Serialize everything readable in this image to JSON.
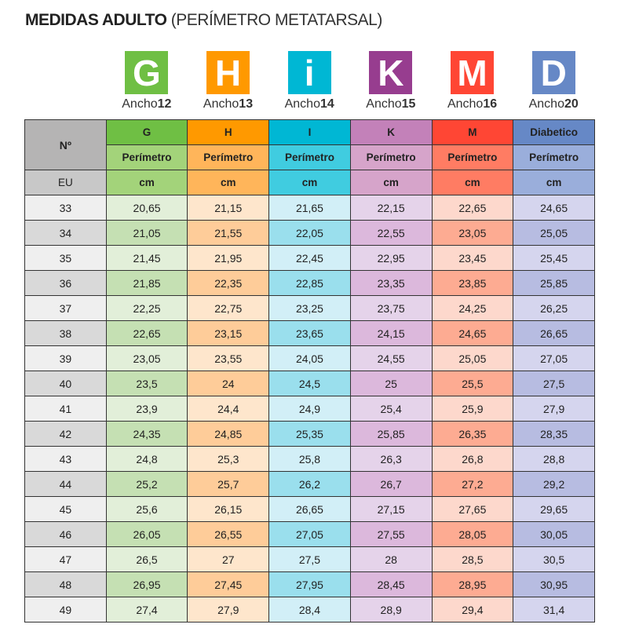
{
  "title": {
    "bold": "MEDIDAS ADULTO",
    "rest": "(PERÍMETRO METATARSAL)"
  },
  "badges": [
    {
      "letter": "G",
      "label": "Ancho",
      "num": "12",
      "color": "#6fbf44"
    },
    {
      "letter": "H",
      "label": "Ancho",
      "num": "13",
      "color": "#ff9900"
    },
    {
      "letter": "i",
      "label": "Ancho",
      "num": "14",
      "color": "#00b7d4"
    },
    {
      "letter": "K",
      "label": "Ancho",
      "num": "15",
      "color": "#973d8f"
    },
    {
      "letter": "M",
      "label": "Ancho",
      "num": "16",
      "color": "#ff4634"
    },
    {
      "letter": "D",
      "label": "Ancho",
      "num": "20",
      "color": "#6688c6"
    }
  ],
  "table": {
    "no_header": "Nº",
    "eu_header": "EU",
    "columns": [
      {
        "name": "G",
        "sub": "Perímetro",
        "unit": "cm",
        "c1": "#6fbf44",
        "c2": "#a3d37a",
        "light": "#e2efd9",
        "dark": "#c5e0b3"
      },
      {
        "name": "H",
        "sub": "Perímetro",
        "unit": "cm",
        "c1": "#ff9900",
        "c2": "#ffb55a",
        "light": "#fee6cc",
        "dark": "#fecc99"
      },
      {
        "name": "I",
        "sub": "Perímetro",
        "unit": "cm",
        "c1": "#00b7d4",
        "c2": "#40cce0",
        "light": "#d2eff7",
        "dark": "#9adfed"
      },
      {
        "name": "K",
        "sub": "Perímetro",
        "unit": "cm",
        "c1": "#c381b9",
        "c2": "#d6a4ca",
        "light": "#e5d3ea",
        "dark": "#dcb8dc"
      },
      {
        "name": "M",
        "sub": "Perímetro",
        "unit": "cm",
        "c1": "#ff4634",
        "c2": "#ff7c63",
        "light": "#fdd8cc",
        "dark": "#fdab92"
      },
      {
        "name": "Diabetico",
        "sub": "Perímetro",
        "unit": "cm",
        "c1": "#6688c6",
        "c2": "#9aaedb",
        "light": "#d5d5ee",
        "dark": "#b7bce1"
      }
    ],
    "rows": [
      [
        "33",
        "20,65",
        "21,15",
        "21,65",
        "22,15",
        "22,65",
        "24,65"
      ],
      [
        "34",
        "21,05",
        "21,55",
        "22,05",
        "22,55",
        "23,05",
        "25,05"
      ],
      [
        "35",
        "21,45",
        "21,95",
        "22,45",
        "22,95",
        "23,45",
        "25,45"
      ],
      [
        "36",
        "21,85",
        "22,35",
        "22,85",
        "23,35",
        "23,85",
        "25,85"
      ],
      [
        "37",
        "22,25",
        "22,75",
        "23,25",
        "23,75",
        "24,25",
        "26,25"
      ],
      [
        "38",
        "22,65",
        "23,15",
        "23,65",
        "24,15",
        "24,65",
        "26,65"
      ],
      [
        "39",
        "23,05",
        "23,55",
        "24,05",
        "24,55",
        "25,05",
        "27,05"
      ],
      [
        "40",
        "23,5",
        "24",
        "24,5",
        "25",
        "25,5",
        "27,5"
      ],
      [
        "41",
        "23,9",
        "24,4",
        "24,9",
        "25,4",
        "25,9",
        "27,9"
      ],
      [
        "42",
        "24,35",
        "24,85",
        "25,35",
        "25,85",
        "26,35",
        "28,35"
      ],
      [
        "43",
        "24,8",
        "25,3",
        "25,8",
        "26,3",
        "26,8",
        "28,8"
      ],
      [
        "44",
        "25,2",
        "25,7",
        "26,2",
        "26,7",
        "27,2",
        "29,2"
      ],
      [
        "45",
        "25,6",
        "26,15",
        "26,65",
        "27,15",
        "27,65",
        "29,65"
      ],
      [
        "46",
        "26,05",
        "26,55",
        "27,05",
        "27,55",
        "28,05",
        "30,05"
      ],
      [
        "47",
        "26,5",
        "27",
        "27,5",
        "28",
        "28,5",
        "30,5"
      ],
      [
        "48",
        "26,95",
        "27,45",
        "27,95",
        "28,45",
        "28,95",
        "30,95"
      ],
      [
        "49",
        "27,4",
        "27,9",
        "28,4",
        "28,9",
        "29,4",
        "31,4"
      ]
    ]
  }
}
